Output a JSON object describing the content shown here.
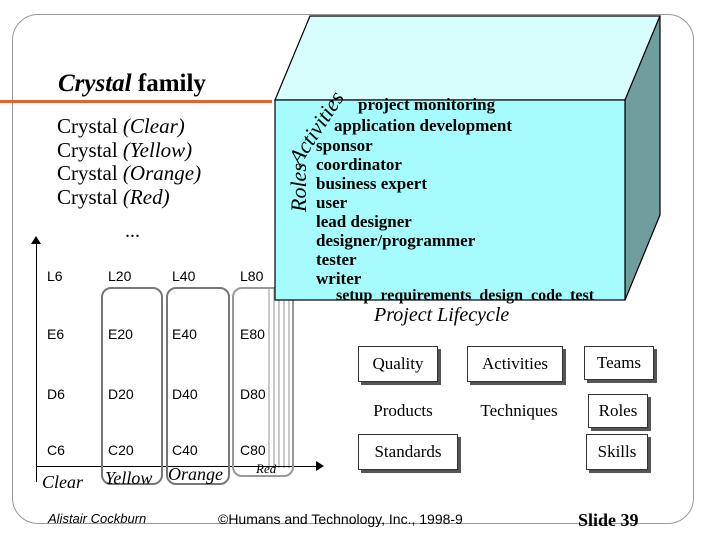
{
  "slide": {
    "title_italic": "Crystal",
    "title_rest": " family",
    "variants": [
      {
        "prefix": "Crystal ",
        "color": "(Clear)"
      },
      {
        "prefix": "Crystal ",
        "color": "(Yellow)"
      },
      {
        "prefix": "Crystal ",
        "color": "(Orange)"
      },
      {
        "prefix": "Crystal ",
        "color": "(Red)"
      }
    ],
    "ellipsis": "...",
    "grid": {
      "rows": [
        [
          "L6",
          "L20",
          "L40",
          "L80"
        ],
        [
          "E6",
          "E20",
          "E40",
          "E80"
        ],
        [
          "D6",
          "D20",
          "D40",
          "D80"
        ],
        [
          "C6",
          "C20",
          "C40",
          "C80"
        ]
      ],
      "labels": {
        "clear": "Clear",
        "yellow": "Yellow",
        "orange": "Orange",
        "red": "Red"
      }
    },
    "cube": {
      "activities_label": "Activities",
      "roles_label": "Roles",
      "top_items": [
        "project monitoring",
        "application development"
      ],
      "roles": [
        "sponsor",
        "coordinator",
        "business expert",
        "user",
        "lead designer",
        "designer/programmer",
        "tester",
        "writer"
      ],
      "lifecycle_steps": "setup  requirements  design  code  test",
      "lifecycle_title": "Project Lifecycle",
      "colors": {
        "front": "#a6fcfc",
        "side": "#6f9e9c",
        "top": "#d8fdfd"
      }
    },
    "boxes": {
      "quality": "Quality",
      "activities": "Activities",
      "teams": "Teams",
      "products": "Products",
      "techniques": "Techniques",
      "roles": "Roles",
      "standards": "Standards",
      "skills": "Skills"
    },
    "footer": {
      "author": "Alistair Cockburn",
      "copyright": "©Humans and Technology, Inc., 1998-9",
      "slide_number": "Slide 39"
    },
    "accent_color": "#e8622b"
  }
}
